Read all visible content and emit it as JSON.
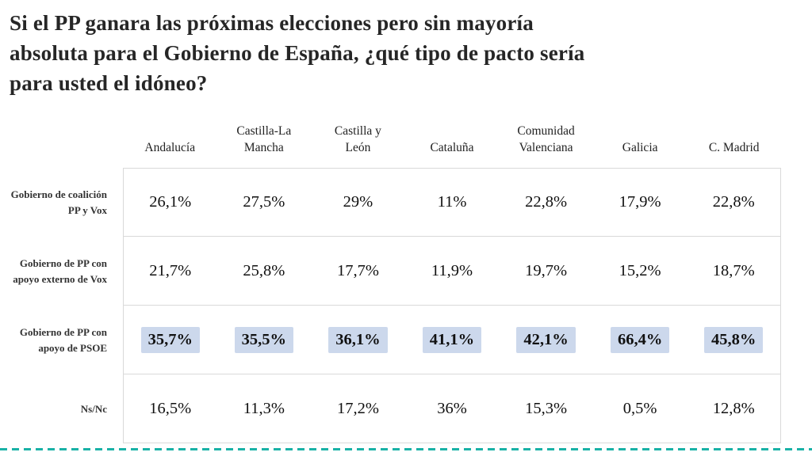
{
  "page": {
    "title_lines": [
      "Si el PP ganara las próximas elecciones pero sin  mayoría",
      "absoluta para el Gobierno de España, ¿qué tipo de pacto sería",
      "para usted el idóneo?"
    ]
  },
  "chart_data": {
    "type": "table",
    "title": "Si el PP ganara las próximas elecciones pero sin mayoría absoluta para el Gobierno de España, ¿qué tipo de pacto sería para usted el idóneo?",
    "columns": [
      "Andalucía",
      "Castilla-La Mancha",
      "Castilla y León",
      "Cataluña",
      "Comunidad Valenciana",
      "Galicia",
      "C. Madrid"
    ],
    "rows": [
      {
        "label": "Gobierno de coalición PP y Vox",
        "values": [
          "26,1%",
          "27,5%",
          "29%",
          "11%",
          "22,8%",
          "17,9%",
          "22,8%"
        ],
        "highlighted": false
      },
      {
        "label": "Gobierno de PP con apoyo externo de Vox",
        "values": [
          "21,7%",
          "25,8%",
          "17,7%",
          "11,9%",
          "19,7%",
          "15,2%",
          "18,7%"
        ],
        "highlighted": false
      },
      {
        "label": "Gobierno de PP con apoyo de PSOE",
        "values": [
          "35,7%",
          "35,5%",
          "36,1%",
          "41,1%",
          "42,1%",
          "66,4%",
          "45,8%"
        ],
        "highlighted": true
      },
      {
        "label": "Ns/Nc",
        "values": [
          "16,5%",
          "11,3%",
          "17,2%",
          "36%",
          "15,3%",
          "0,5%",
          "12,8%"
        ],
        "highlighted": false
      }
    ],
    "colors": {
      "highlight": "#ccd8ec",
      "border": "#d9d9d9",
      "accent_dashed_line": "#19b1a6",
      "title_text": "#262626",
      "value_text": "#111111"
    },
    "legend_position": "none",
    "grid": "horizontal-row-separators"
  }
}
